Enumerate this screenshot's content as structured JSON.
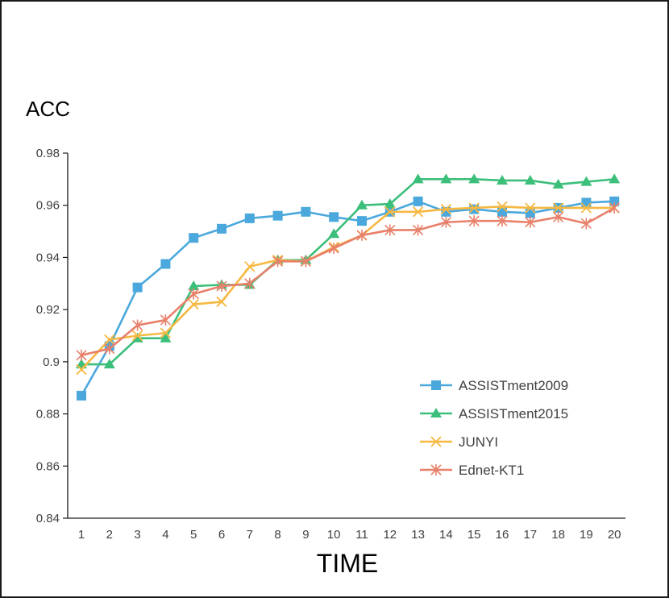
{
  "chart_data": {
    "type": "line",
    "title": "",
    "ylabel": "ACC",
    "xlabel": "TIME",
    "ylim": [
      0.84,
      0.98
    ],
    "yticks": [
      "0.84",
      "0.86",
      "0.88",
      "0.9",
      "0.92",
      "0.94",
      "0.96",
      "0.98"
    ],
    "x": [
      1,
      2,
      3,
      4,
      5,
      6,
      7,
      8,
      9,
      10,
      11,
      12,
      13,
      14,
      15,
      16,
      17,
      18,
      19,
      20
    ],
    "grid": false,
    "legend_position": "bottom-right",
    "series": [
      {
        "name": "ASSISTment2009",
        "color": "#4aa8dd",
        "marker": "square",
        "values": [
          0.887,
          0.906,
          0.9285,
          0.9375,
          0.9475,
          0.951,
          0.955,
          0.956,
          0.9575,
          0.9555,
          0.954,
          0.9575,
          0.9615,
          0.9575,
          0.9585,
          0.9575,
          0.957,
          0.959,
          0.961,
          0.9615
        ]
      },
      {
        "name": "ASSISTment2015",
        "color": "#3cbf7a",
        "marker": "triangle",
        "values": [
          0.899,
          0.899,
          0.909,
          0.909,
          0.929,
          0.9295,
          0.9295,
          0.939,
          0.939,
          0.949,
          0.96,
          0.9605,
          0.97,
          0.97,
          0.97,
          0.9695,
          0.9695,
          0.968,
          0.969,
          0.97
        ]
      },
      {
        "name": "JUNYI",
        "color": "#f7b842",
        "marker": "x",
        "values": [
          0.897,
          0.9085,
          0.91,
          0.911,
          0.922,
          0.923,
          0.9365,
          0.939,
          0.9385,
          0.944,
          0.9485,
          0.9575,
          0.9575,
          0.9585,
          0.959,
          0.9595,
          0.959,
          0.959,
          0.959,
          0.959
        ]
      },
      {
        "name": "Ednet-KT1",
        "color": "#e8806a",
        "marker": "asterisk",
        "values": [
          0.9025,
          0.905,
          0.914,
          0.916,
          0.926,
          0.929,
          0.93,
          0.9385,
          0.9385,
          0.9435,
          0.9485,
          0.9505,
          0.9505,
          0.9535,
          0.954,
          0.954,
          0.9535,
          0.9555,
          0.953,
          0.959
        ]
      }
    ]
  }
}
